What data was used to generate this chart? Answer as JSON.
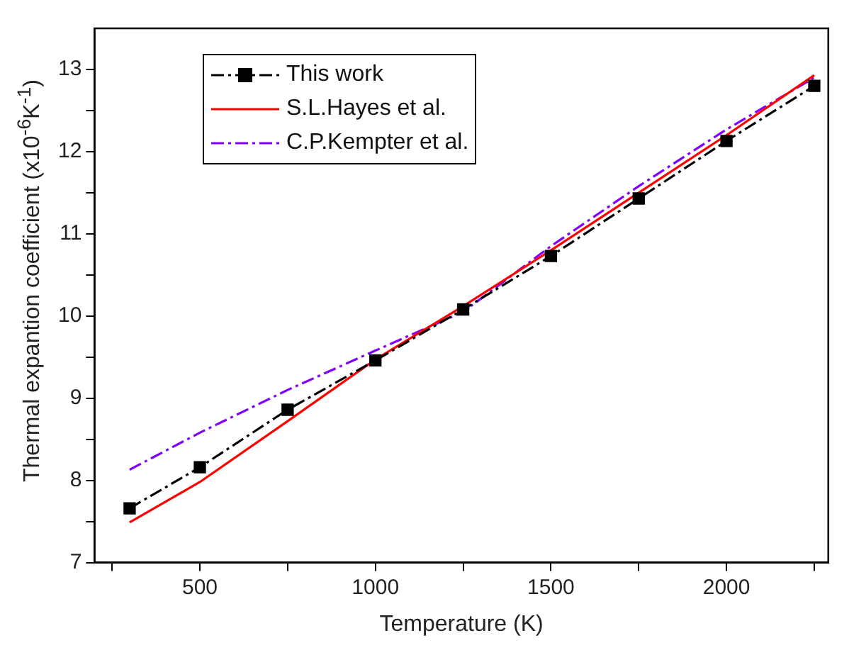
{
  "chart_data": {
    "type": "line",
    "xlabel": "Temperature (K)",
    "ylabel": "Thermal expantion coefficient (x10$^{-6}$K$^{-1}$)",
    "x": [
      300,
      500,
      750,
      1000,
      1250,
      1500,
      1750,
      2000,
      2250
    ],
    "series": [
      {
        "name": "This work",
        "color": "#000000",
        "marker": "square",
        "line_style": "dashed",
        "values": [
          7.66,
          8.16,
          8.86,
          9.46,
          10.08,
          10.73,
          11.43,
          12.13,
          12.8
        ]
      },
      {
        "name": "S.L.Hayes et al.",
        "color": "#ff0000",
        "marker": "none",
        "line_style": "solid",
        "values": [
          7.49,
          7.98,
          8.72,
          9.47,
          10.12,
          10.8,
          11.5,
          12.2,
          12.93
        ]
      },
      {
        "name": "C.P.Kempter et al.",
        "color": "#8000ff",
        "marker": "none",
        "line_style": "dashed",
        "values": [
          8.13,
          8.58,
          9.1,
          9.58,
          10.05,
          10.85,
          11.58,
          12.27,
          12.9
        ]
      }
    ],
    "xlim": [
      200,
      2290
    ],
    "xticks": [
      {
        "value": 250,
        "label": null
      },
      500,
      {
        "value": 750,
        "label": null
      },
      1000,
      {
        "value": 1250,
        "label": null
      },
      1500,
      {
        "value": 1750,
        "label": null
      },
      2000,
      {
        "value": 2250,
        "label": null
      }
    ],
    "ylim": [
      7,
      13.5
    ],
    "yticks": [
      7,
      {
        "value": 7.5,
        "label": null
      },
      8,
      {
        "value": 8.5,
        "label": null
      },
      9,
      {
        "value": 9.5,
        "label": null
      },
      10,
      {
        "value": 10.5,
        "label": null
      },
      11,
      {
        "value": 11.5,
        "label": null
      },
      12,
      {
        "value": 12.5,
        "label": null
      },
      13
    ],
    "grid": false,
    "legend": "top left"
  }
}
